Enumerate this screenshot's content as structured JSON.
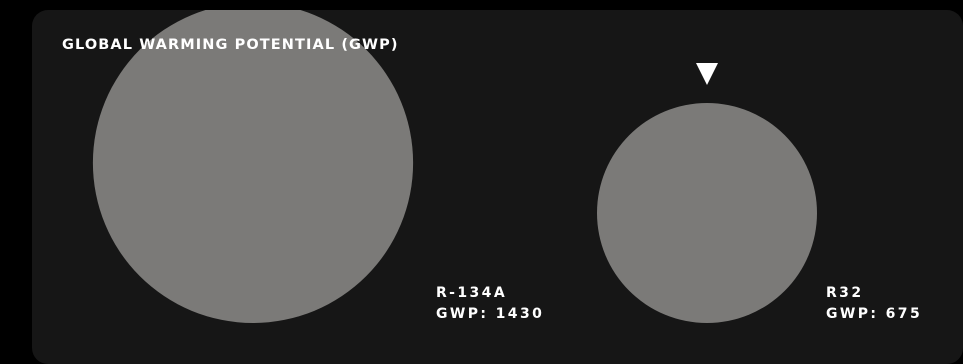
{
  "chart_data": {
    "type": "bubble",
    "title": "GLOBAL WARMING POTENTIAL (GWP)",
    "series": [
      {
        "name": "R-134A",
        "gwp_label": "GWP: 1430",
        "value": 1430
      },
      {
        "name": "R32",
        "gwp_label": "GWP: 675",
        "value": 675,
        "highlighted": true
      }
    ]
  },
  "colors": {
    "background": "#000000",
    "panel": "#161616",
    "bubble": "#7b7a78",
    "text": "#ffffff",
    "marker": "#ffffff"
  },
  "icons": {
    "marker": "triangle-down-icon"
  }
}
